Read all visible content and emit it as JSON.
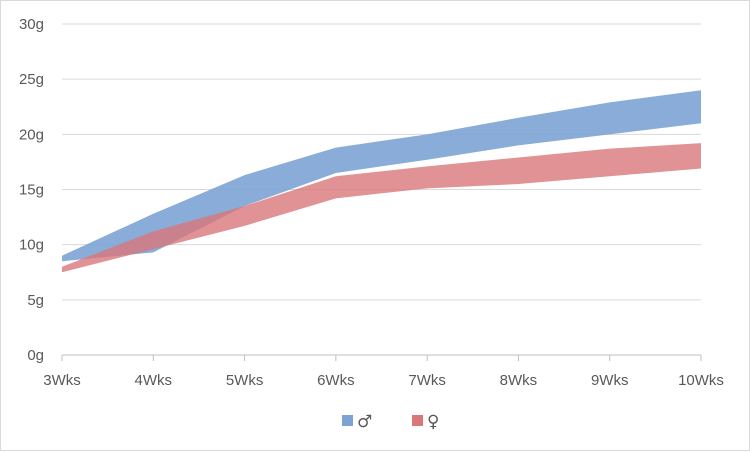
{
  "chart_data": {
    "type": "area",
    "title": "",
    "xlabel": "",
    "ylabel": "",
    "categories": [
      "3Wks",
      "4Wks",
      "5Wks",
      "6Wks",
      "7Wks",
      "8Wks",
      "9Wks",
      "10Wks"
    ],
    "y_ticks": [
      "0g",
      "5g",
      "10g",
      "15g",
      "20g",
      "25g",
      "30g"
    ],
    "ylim": [
      0,
      30
    ],
    "grid": true,
    "legend_position": "bottom",
    "series": [
      {
        "name": "♂",
        "color": "#7ca3d4",
        "lower": [
          8.5,
          9.3,
          13.5,
          16.5,
          17.7,
          19.0,
          20.0,
          21.0
        ],
        "upper": [
          9.0,
          12.8,
          16.3,
          18.8,
          20.0,
          21.5,
          22.9,
          24.0
        ]
      },
      {
        "name": "♀",
        "color": "#d9777a",
        "lower": [
          7.5,
          9.6,
          11.7,
          14.2,
          15.1,
          15.5,
          16.2,
          16.9
        ],
        "upper": [
          8.0,
          11.2,
          13.5,
          16.2,
          17.1,
          17.9,
          18.7,
          19.2
        ]
      }
    ]
  }
}
